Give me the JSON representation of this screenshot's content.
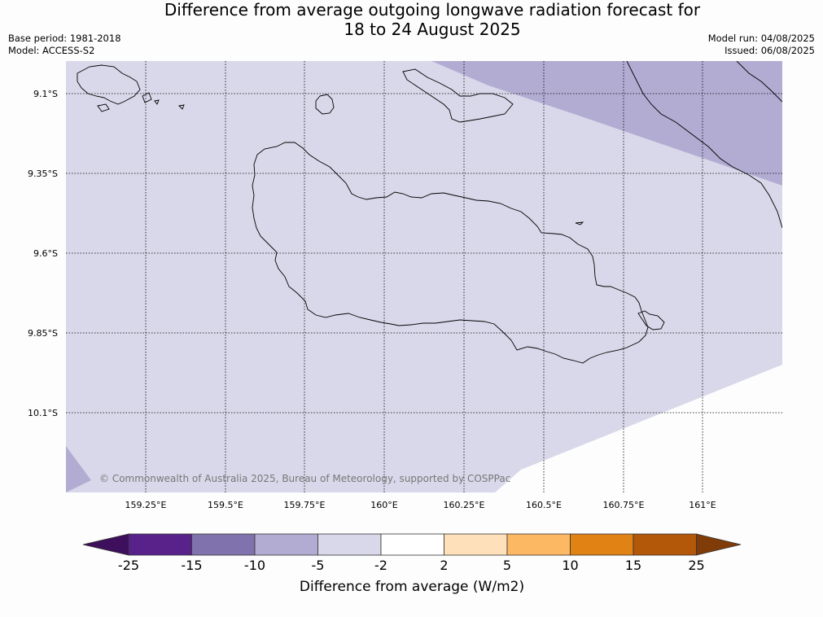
{
  "title": {
    "line1": "Difference from average outgoing longwave radiation forecast for",
    "line2": "18 to 24 August 2025"
  },
  "meta": {
    "base_period": "Base period: 1981-2018",
    "model": "Model: ACCESS-S2",
    "model_run": "Model run: 04/08/2025",
    "issued": "Issued: 06/08/2025"
  },
  "map": {
    "lat_labels": [
      "9.1°S",
      "9.35°S",
      "9.6°S",
      "9.85°S",
      "10.1°S"
    ],
    "lon_labels": [
      "159.25°E",
      "159.5°E",
      "159.75°E",
      "160°E",
      "160.25°E",
      "160.5°E",
      "160.75°E",
      "161°E"
    ],
    "copyright": "© Commonwealth of Australia 2025, Bureau of Meteorology, supported by COSPPac",
    "fill_colors": {
      "light_purple": "#d8d8ea",
      "mid_purple": "#b2acd3"
    }
  },
  "colorbar": {
    "title": "Difference from average (W/m2)",
    "ticks": [
      "-25",
      "-15",
      "-10",
      "-5",
      "-2",
      "2",
      "5",
      "10",
      "15",
      "25"
    ],
    "colors": [
      "#4b1a79",
      "#58228a",
      "#8073ad",
      "#b2acd3",
      "#d8d8ea",
      "#ffffff",
      "#fee1ba",
      "#fdb863",
      "#e08314",
      "#b35808",
      "#7f3b08"
    ]
  }
}
